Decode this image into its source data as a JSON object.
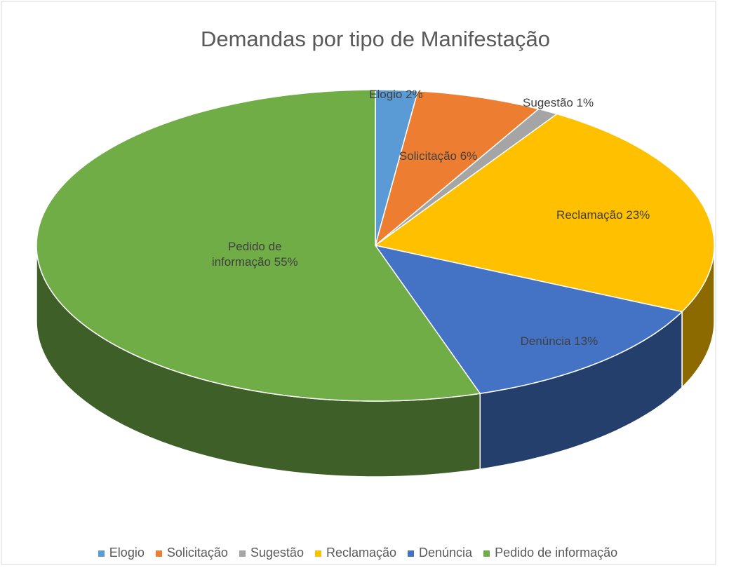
{
  "chart_data": {
    "type": "pie3d",
    "title": "Demandas por tipo de Manifestação",
    "categories": [
      "Elogio",
      "Solicitação",
      "Sugestão",
      "Reclamação",
      "Denúncia",
      "Pedido de informação"
    ],
    "values": [
      2,
      6,
      1,
      23,
      13,
      55
    ],
    "value_labels": [
      "Elogio 2%",
      "Solicitação 6%",
      "Sugestão 1%",
      "Reclamação 23%",
      "Denúncia 13%",
      "Pedido de informação 55%"
    ],
    "colors": [
      "#5b9bd5",
      "#ed7d31",
      "#a5a5a5",
      "#ffc000",
      "#4472c4",
      "#70ad47"
    ],
    "legend": "bottom"
  }
}
